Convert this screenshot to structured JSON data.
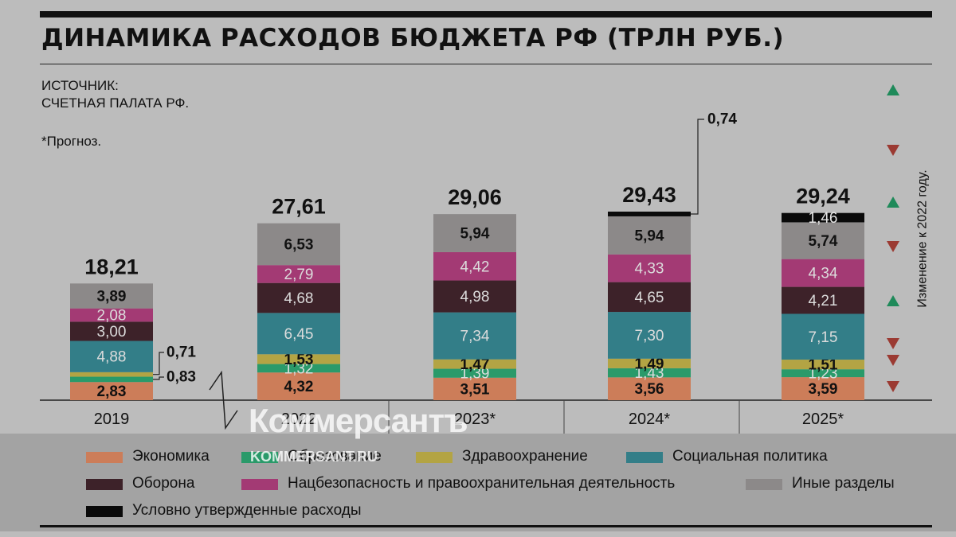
{
  "title": "ДИНАМИКА РАСХОДОВ БЮДЖЕТА РФ (ТРЛН РУБ.)",
  "source_line1": "ИСТОЧНИК:",
  "source_line2": "СЧЕТНАЯ ПАЛАТА РФ.",
  "note": "*Прогноз.",
  "side_label": "Изменение к 2022 году.",
  "watermark": {
    "brand": "Коммерсантъ",
    "site": "KOMMERSANT.RU"
  },
  "colors": {
    "background": "#bcbcbc",
    "green_arrow": "#1f8a5a",
    "red_arrow": "#9b3a32"
  },
  "chart_data": {
    "type": "bar",
    "stacked": true,
    "categories": [
      "2019",
      "2022",
      "2023*",
      "2024*",
      "2025*"
    ],
    "totals": [
      "18,21",
      "27,61",
      "29,06",
      "29,43",
      "29,24"
    ],
    "series": [
      {
        "name": "Экономика",
        "color": "#cc7d59",
        "values": [
          2.83,
          4.32,
          3.51,
          3.56,
          3.59
        ],
        "labels": [
          "2,83",
          "4,32",
          "3,51",
          "3,56",
          "3,59"
        ]
      },
      {
        "name": "Образование",
        "color": "#2a9a6a",
        "values": [
          0.83,
          1.32,
          1.39,
          1.43,
          1.23
        ],
        "labels": [
          "0,83",
          "1,32",
          "1,39",
          "1,43",
          "1,23"
        ]
      },
      {
        "name": "Здравоохранение",
        "color": "#b3a444",
        "values": [
          0.71,
          1.53,
          1.47,
          1.49,
          1.51
        ],
        "labels": [
          "0,71",
          "1,53",
          "1,47",
          "1,49",
          "1,51"
        ]
      },
      {
        "name": "Социальная политика",
        "color": "#337e88",
        "values": [
          4.88,
          6.45,
          7.34,
          7.3,
          7.15
        ],
        "labels": [
          "4,88",
          "6,45",
          "7,34",
          "7,30",
          "7,15"
        ]
      },
      {
        "name": "Оборона",
        "color": "#3d2229",
        "values": [
          3.0,
          4.68,
          4.98,
          4.65,
          4.21
        ],
        "labels": [
          "3,00",
          "4,68",
          "4,98",
          "4,65",
          "4,21"
        ]
      },
      {
        "name": "Нацбезопасность и правоохранительная деятельность",
        "color": "#a33a74",
        "values": [
          2.08,
          2.79,
          4.42,
          4.33,
          4.34
        ],
        "labels": [
          "2,08",
          "2,79",
          "4,42",
          "4,33",
          "4,34"
        ]
      },
      {
        "name": "Иные разделы",
        "color": "#8c8989",
        "values": [
          3.89,
          6.53,
          5.94,
          5.94,
          5.74
        ],
        "labels": [
          "3,89",
          "6,53",
          "5,94",
          "5,94",
          "5,74"
        ]
      },
      {
        "name": "Условно утвержденные расходы",
        "color": "#0a0a0a",
        "values": [
          0,
          0,
          0,
          0.74,
          1.46
        ],
        "labels": [
          "",
          "",
          "",
          "0,74",
          "1,46"
        ]
      }
    ],
    "change_to_2022_arrows": [
      {
        "series": "Итого",
        "direction": "up"
      },
      {
        "series": "Иные разделы",
        "direction": "down"
      },
      {
        "series": "Нацбезопасность и правоохранительная деятельность",
        "direction": "up"
      },
      {
        "series": "Оборона",
        "direction": "down"
      },
      {
        "series": "Социальная политика",
        "direction": "up"
      },
      {
        "series": "Здравоохранение",
        "direction": "down"
      },
      {
        "series": "Образование",
        "direction": "down"
      },
      {
        "series": "Экономика",
        "direction": "down"
      }
    ],
    "axis_break_between": [
      "2019",
      "2022"
    ]
  },
  "legend": [
    {
      "label": "Экономика",
      "color": "#cc7d59"
    },
    {
      "label": "Образование",
      "color": "#2a9a6a"
    },
    {
      "label": "Здравоохранение",
      "color": "#b3a444"
    },
    {
      "label": "Социальная политика",
      "color": "#337e88"
    },
    {
      "label": "Оборона",
      "color": "#3d2229"
    },
    {
      "label": "Нацбезопасность и правоохранительная деятельность",
      "color": "#a33a74"
    },
    {
      "label": "Иные разделы",
      "color": "#8c8989"
    },
    {
      "label": "Условно утвержденные расходы",
      "color": "#0a0a0a"
    }
  ]
}
